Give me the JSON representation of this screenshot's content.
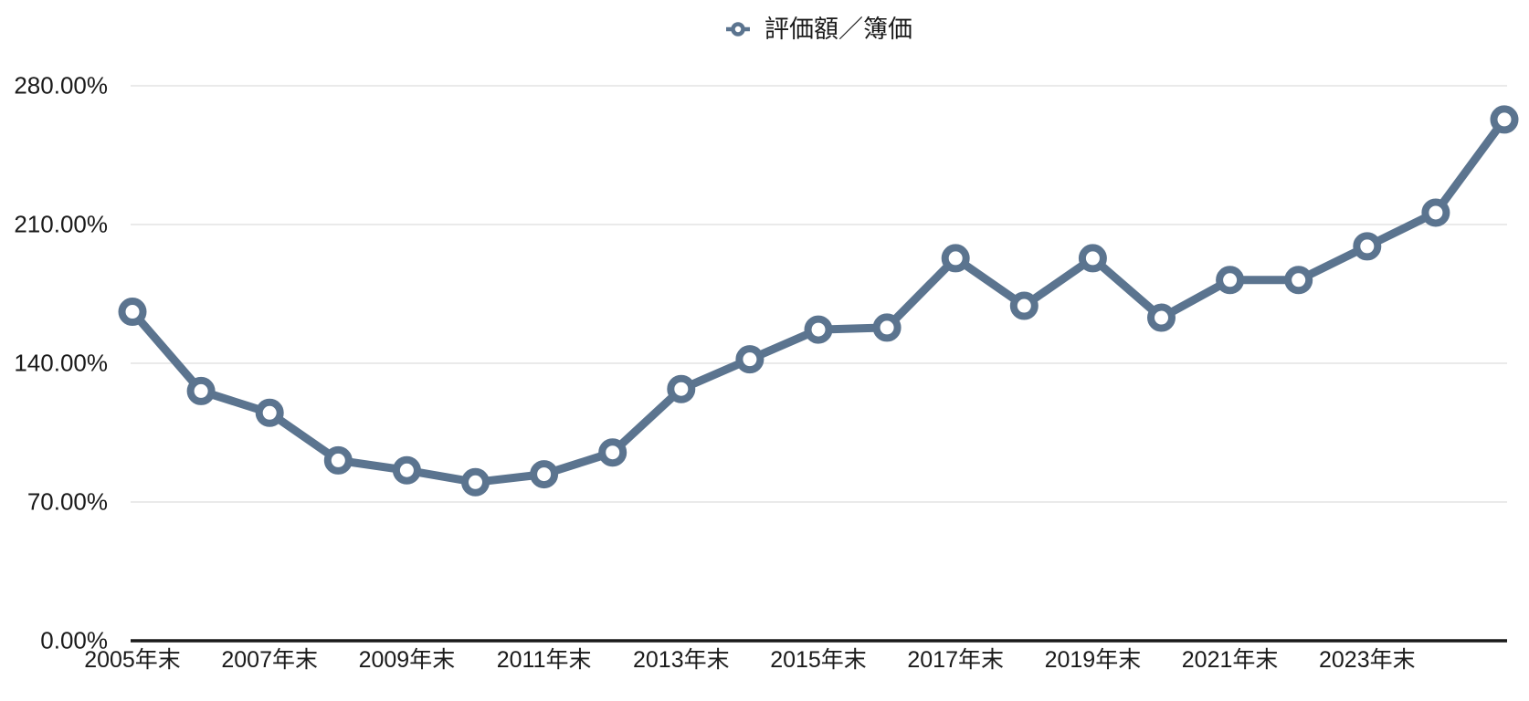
{
  "legend": {
    "label": "評価額／簿価"
  },
  "chart_data": {
    "type": "line",
    "title": "",
    "legend_position": "top-center",
    "categories": [
      "2005年末",
      "2006年末",
      "2007年末",
      "2008年末",
      "2009年末",
      "2010年末",
      "2011年末",
      "2012年末",
      "2013年末",
      "2014年末",
      "2015年末",
      "2016年末",
      "2017年末",
      "2018年末",
      "2019年末",
      "2020年末",
      "2021年末",
      "2022年末",
      "2023年末",
      "2024年末",
      "2025年末"
    ],
    "series": [
      {
        "name": "評価額／簿価",
        "values": [
          166,
          126,
          115,
          91,
          86,
          80,
          84,
          95,
          127,
          142,
          157,
          158,
          193,
          169,
          193,
          163,
          182,
          182,
          199,
          216,
          263
        ]
      }
    ],
    "value_unit": "%",
    "x_axis_tick_labels": [
      "2005年末",
      "2007年末",
      "2009年末",
      "2011年末",
      "2013年末",
      "2015年末",
      "2017年末",
      "2019年末",
      "2021年末",
      "2023年末"
    ],
    "x_tick_every_n_points": 2,
    "y_ticks": [
      {
        "label": "280.00%",
        "value": 280
      },
      {
        "label": "210.00%",
        "value": 210
      },
      {
        "label": "140.00%",
        "value": 140
      },
      {
        "label": "70.00%",
        "value": 70
      },
      {
        "label": "0.00%",
        "value": 0
      }
    ],
    "ylim": [
      0,
      280
    ],
    "grid": true,
    "colors": {
      "line": "#5b748f",
      "marker_fill": "#ffffff",
      "gridline": "#e3e3e3",
      "axis": "#1a1a1a",
      "text": "#1a1a1a"
    }
  }
}
